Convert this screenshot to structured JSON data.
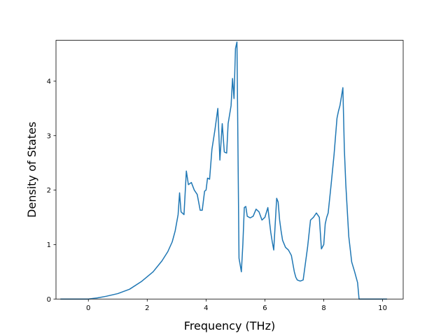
{
  "chart_data": {
    "type": "line",
    "title": "",
    "xlabel": "Frequency (THz)",
    "ylabel": "Density of States",
    "xlim": [
      -1.1,
      10.7
    ],
    "ylim": [
      0,
      4.75
    ],
    "xticks": [
      0,
      2,
      4,
      6,
      8,
      10
    ],
    "yticks": [
      0,
      1,
      2,
      3,
      4
    ],
    "grid": false,
    "series": [
      {
        "color": "#1f77b4",
        "x": [
          -0.95,
          -0.5,
          0.0,
          0.3,
          0.6,
          1.0,
          1.4,
          1.8,
          2.2,
          2.5,
          2.7,
          2.85,
          2.95,
          3.05,
          3.1,
          3.15,
          3.25,
          3.33,
          3.4,
          3.5,
          3.6,
          3.7,
          3.8,
          3.87,
          3.95,
          4.0,
          4.05,
          4.12,
          4.2,
          4.3,
          4.4,
          4.47,
          4.55,
          4.62,
          4.7,
          4.75,
          4.85,
          4.9,
          4.95,
          5.0,
          5.05,
          5.12,
          5.2,
          5.25,
          5.3,
          5.35,
          5.4,
          5.5,
          5.6,
          5.7,
          5.8,
          5.9,
          6.0,
          6.1,
          6.2,
          6.25,
          6.3,
          6.4,
          6.45,
          6.5,
          6.55,
          6.6,
          6.7,
          6.8,
          6.9,
          7.0,
          7.05,
          7.1,
          7.2,
          7.3,
          7.45,
          7.55,
          7.65,
          7.75,
          7.85,
          7.92,
          8.0,
          8.05,
          8.1,
          8.15,
          8.25,
          8.35,
          8.45,
          8.5,
          8.55,
          8.65,
          8.7,
          8.75,
          8.85,
          8.95,
          9.05,
          9.15,
          9.2,
          9.5,
          10.15
        ],
        "y": [
          0,
          0,
          0,
          0.02,
          0.05,
          0.1,
          0.18,
          0.32,
          0.5,
          0.7,
          0.87,
          1.05,
          1.25,
          1.55,
          1.95,
          1.6,
          1.55,
          2.35,
          2.1,
          2.14,
          2.0,
          1.92,
          1.63,
          1.63,
          1.98,
          2.0,
          2.22,
          2.2,
          2.75,
          3.1,
          3.5,
          2.55,
          3.22,
          2.7,
          2.68,
          3.22,
          3.55,
          4.05,
          3.68,
          4.6,
          4.72,
          0.75,
          0.5,
          1.0,
          1.68,
          1.7,
          1.52,
          1.49,
          1.52,
          1.65,
          1.6,
          1.45,
          1.5,
          1.68,
          1.22,
          1.05,
          0.9,
          1.85,
          1.78,
          1.45,
          1.25,
          1.08,
          0.95,
          0.9,
          0.8,
          0.5,
          0.4,
          0.35,
          0.33,
          0.35,
          0.95,
          1.45,
          1.5,
          1.58,
          1.5,
          0.92,
          1.0,
          1.38,
          1.5,
          1.58,
          2.1,
          2.65,
          3.32,
          3.45,
          3.55,
          3.88,
          2.75,
          2.1,
          1.15,
          0.68,
          0.5,
          0.3,
          0.0,
          0.0,
          0.0
        ]
      }
    ]
  }
}
